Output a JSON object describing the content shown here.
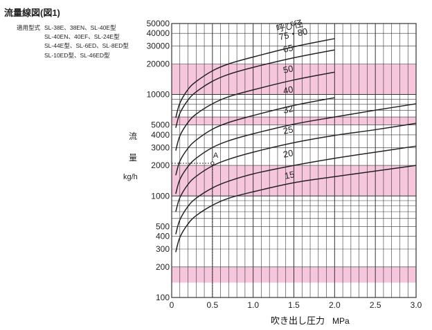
{
  "title": "流量線図(図1)",
  "models": {
    "label": "適用型式",
    "lines": [
      "SL-38E、38EN、SL-40E型",
      "SL-40EN、40EF、SL-24E型",
      "SL-44E型、SL-6ED、SL-8ED型",
      "SL-10ED型、SL-46ED型"
    ]
  },
  "chart_data": {
    "type": "line",
    "xlabel": "吹き出し圧力",
    "xunit": "MPa",
    "ylabel_chars": [
      "流",
      "量"
    ],
    "yunit": "kg/h",
    "xlim": [
      0,
      3.0
    ],
    "ylim": [
      100,
      50000
    ],
    "yscale": "log",
    "xticks": [
      0,
      0.5,
      1.0,
      1.5,
      2.0,
      2.5,
      3.0
    ],
    "xtick_labels": [
      "0",
      "0.5",
      "1.0",
      "1.5",
      "2.0",
      "2.5",
      "3.0"
    ],
    "yticks": [
      100,
      200,
      300,
      400,
      500,
      1000,
      2000,
      3000,
      4000,
      5000,
      10000,
      20000,
      30000,
      40000,
      50000
    ],
    "ytick_labels": [
      "100",
      "200",
      "300",
      "400",
      "500",
      "1000",
      "2000",
      "3000",
      "4000",
      "5000",
      "10000",
      "20000",
      "30000",
      "40000",
      "50000"
    ],
    "series_header": "呼び径",
    "series": [
      {
        "name": "15",
        "x": [
          0.05,
          0.1,
          0.2,
          0.3,
          0.5,
          0.7,
          1.0,
          1.5,
          2.0,
          2.5,
          3.0
        ],
        "values": [
          280,
          390,
          530,
          640,
          810,
          950,
          1100,
          1350,
          1550,
          1760,
          2000
        ]
      },
      {
        "name": "20",
        "x": [
          0.05,
          0.1,
          0.2,
          0.3,
          0.5,
          0.7,
          1.0,
          1.5,
          2.0,
          2.5,
          3.0
        ],
        "values": [
          420,
          580,
          790,
          950,
          1200,
          1400,
          1650,
          2000,
          2350,
          2700,
          3100
        ]
      },
      {
        "name": "25",
        "x": [
          0.05,
          0.1,
          0.2,
          0.3,
          0.5,
          0.7,
          1.0,
          1.5,
          2.0,
          2.5,
          3.0
        ],
        "values": [
          700,
          960,
          1300,
          1560,
          1980,
          2300,
          2700,
          3350,
          3950,
          4500,
          5200
        ]
      },
      {
        "name": "32",
        "x": [
          0.05,
          0.1,
          0.2,
          0.3,
          0.5,
          0.7,
          1.0,
          1.5,
          2.0,
          2.5,
          3.0
        ],
        "values": [
          1050,
          1450,
          1950,
          2350,
          3000,
          3500,
          4100,
          5100,
          6000,
          7000,
          8100
        ]
      },
      {
        "name": "40",
        "x": [
          0.05,
          0.1,
          0.2,
          0.3,
          0.5,
          0.7,
          1.0,
          1.5,
          2.0
        ],
        "values": [
          1600,
          2200,
          2950,
          3550,
          4550,
          5300,
          6200,
          7800,
          9300
        ]
      },
      {
        "name": "50",
        "x": [
          0.05,
          0.1,
          0.2,
          0.3,
          0.5,
          0.7,
          1.0,
          1.5,
          2.0
        ],
        "values": [
          2800,
          3900,
          5300,
          6400,
          8100,
          9500,
          11100,
          13900,
          16600
        ]
      },
      {
        "name": "65",
        "x": [
          0.05,
          0.1,
          0.2,
          0.3,
          0.5,
          0.7,
          1.0,
          1.5,
          2.0
        ],
        "values": [
          4700,
          6500,
          8800,
          10600,
          13500,
          15800,
          18500,
          23000,
          27500
        ]
      },
      {
        "name": "75・80",
        "x": [
          0.05,
          0.1,
          0.2,
          0.3,
          0.5,
          0.7,
          1.0,
          1.5,
          2.0
        ],
        "values": [
          5900,
          8200,
          11200,
          13400,
          17100,
          20000,
          23400,
          29500,
          35500
        ]
      }
    ],
    "shaded_bands": [
      [
        140,
        200
      ],
      [
        1000,
        2000
      ],
      [
        5000,
        6000
      ],
      [
        10000,
        20000
      ]
    ],
    "annotation": {
      "label": "A",
      "x": 0.5,
      "y": 2100
    },
    "grid": true
  },
  "colors": {
    "band": "#f5c6dc",
    "grid": "#333333",
    "curve": "#222222"
  }
}
